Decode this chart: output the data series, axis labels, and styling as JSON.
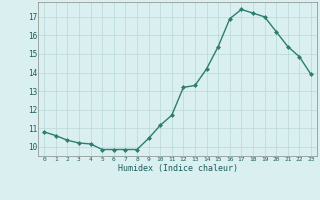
{
  "x": [
    0,
    1,
    2,
    3,
    4,
    5,
    6,
    7,
    8,
    9,
    10,
    11,
    12,
    13,
    14,
    15,
    16,
    17,
    18,
    19,
    20,
    21,
    22,
    23
  ],
  "y": [
    10.8,
    10.6,
    10.35,
    10.2,
    10.15,
    9.85,
    9.85,
    9.85,
    9.85,
    10.45,
    11.15,
    11.7,
    13.2,
    13.3,
    14.2,
    15.4,
    16.9,
    17.4,
    17.2,
    17.0,
    16.2,
    15.4,
    14.85,
    13.9
  ],
  "x_ticks": [
    0,
    1,
    2,
    3,
    4,
    5,
    6,
    7,
    8,
    9,
    10,
    11,
    12,
    13,
    14,
    15,
    16,
    17,
    18,
    19,
    20,
    21,
    22,
    23
  ],
  "y_ticks": [
    10,
    11,
    12,
    13,
    14,
    15,
    16,
    17
  ],
  "ylim": [
    9.5,
    17.8
  ],
  "xlim": [
    -0.5,
    23.5
  ],
  "xlabel": "Humidex (Indice chaleur)",
  "line_color": "#2e7d6e",
  "marker": "D",
  "marker_size": 2,
  "linewidth": 1.0,
  "bg_color": "#d9eff0",
  "grid_color": "#b8d8d8",
  "figsize": [
    3.2,
    2.0
  ],
  "dpi": 100
}
